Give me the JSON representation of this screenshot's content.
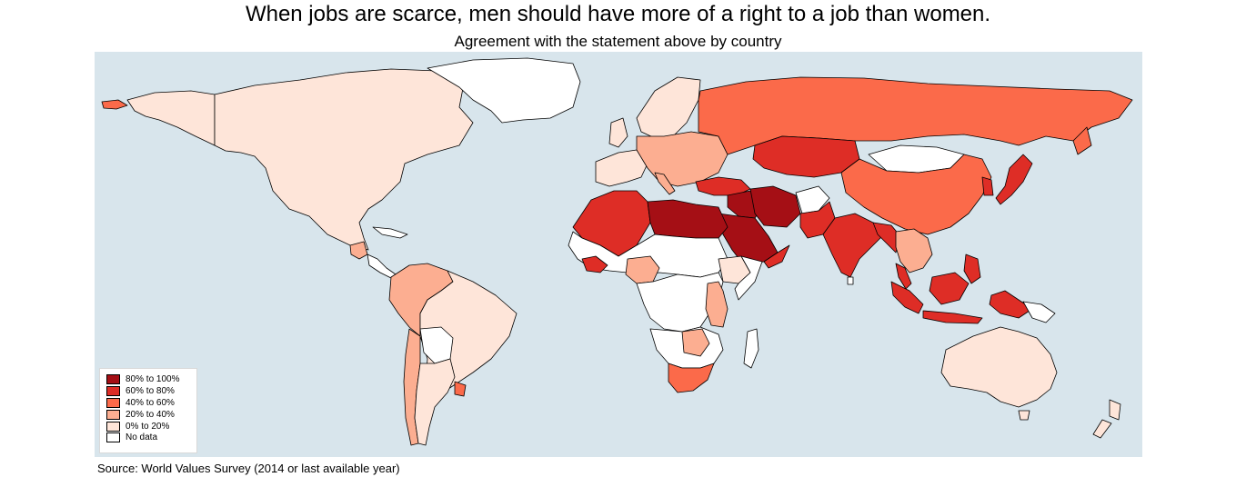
{
  "title": "When jobs are scarce, men should have more of a right to a job than women.",
  "subtitle": "Agreement with the statement above by country",
  "source": "Source: World Values Survey (2014 or last available year)",
  "colors": {
    "ocean": "#d8e5ec",
    "bin_80_100": "#a50f15",
    "bin_60_80": "#de2d26",
    "bin_40_60": "#fb6a4a",
    "bin_20_40": "#fcae91",
    "bin_0_20": "#fee5d9",
    "no_data": "#ffffff"
  },
  "legend": {
    "items": [
      {
        "label": "80% to 100%",
        "color": "#a50f15"
      },
      {
        "label": "60% to 80%",
        "color": "#de2d26"
      },
      {
        "label": "40% to 60%",
        "color": "#fb6a4a"
      },
      {
        "label": "20% to 40%",
        "color": "#fcae91"
      },
      {
        "label": "0% to 20%",
        "color": "#fee5d9"
      },
      {
        "label": "No data",
        "color": "#ffffff"
      }
    ]
  },
  "regions": [
    {
      "name": "canada-usa-mexico",
      "bin": "0% to 20%"
    },
    {
      "name": "alaska",
      "bin": "0% to 20%"
    },
    {
      "name": "greenland",
      "bin": "No data"
    },
    {
      "name": "guatemala",
      "bin": "20% to 40%"
    },
    {
      "name": "south-america",
      "bin": "0% to 20%"
    },
    {
      "name": "colombia-peru-venezuela",
      "bin": "20% to 40%"
    },
    {
      "name": "chile",
      "bin": "20% to 40%"
    },
    {
      "name": "uruguay",
      "bin": "40% to 60%"
    },
    {
      "name": "bolivia-paraguay",
      "bin": "No data"
    },
    {
      "name": "russia",
      "bin": "40% to 60%"
    },
    {
      "name": "kazakhstan",
      "bin": "60% to 80%"
    },
    {
      "name": "china",
      "bin": "40% to 60%"
    },
    {
      "name": "mongolia",
      "bin": "No data"
    },
    {
      "name": "japan",
      "bin": "60% to 80%"
    },
    {
      "name": "india",
      "bin": "60% to 80%"
    },
    {
      "name": "pakistan",
      "bin": "60% to 80%"
    },
    {
      "name": "iran",
      "bin": "80% to 100%"
    },
    {
      "name": "afghanistan",
      "bin": "No data"
    },
    {
      "name": "saudi-arabia",
      "bin": "80% to 100%"
    },
    {
      "name": "iraq",
      "bin": "80% to 100%"
    },
    {
      "name": "turkey",
      "bin": "60% to 80%"
    },
    {
      "name": "scandinavia",
      "bin": "0% to 20%"
    },
    {
      "name": "europe",
      "bin": "20% to 40%"
    },
    {
      "name": "spain-france",
      "bin": "0% to 20%"
    },
    {
      "name": "maghreb",
      "bin": "60% to 80%"
    },
    {
      "name": "libya-egypt",
      "bin": "80% to 100%"
    },
    {
      "name": "sahel",
      "bin": "No data"
    },
    {
      "name": "nigeria",
      "bin": "20% to 40%"
    },
    {
      "name": "ethiopia",
      "bin": "0% to 20%"
    },
    {
      "name": "central-africa",
      "bin": "No data"
    },
    {
      "name": "east-africa",
      "bin": "20% to 40%"
    },
    {
      "name": "south-africa",
      "bin": "40% to 60%"
    },
    {
      "name": "madagascar",
      "bin": "No data"
    },
    {
      "name": "southeast-asia",
      "bin": "20% to 40%"
    },
    {
      "name": "indonesia-malaysia",
      "bin": "60% to 80%"
    },
    {
      "name": "philippines",
      "bin": "60% to 80%"
    },
    {
      "name": "australia",
      "bin": "0% to 20%"
    },
    {
      "name": "new-zealand",
      "bin": "0% to 20%"
    }
  ]
}
